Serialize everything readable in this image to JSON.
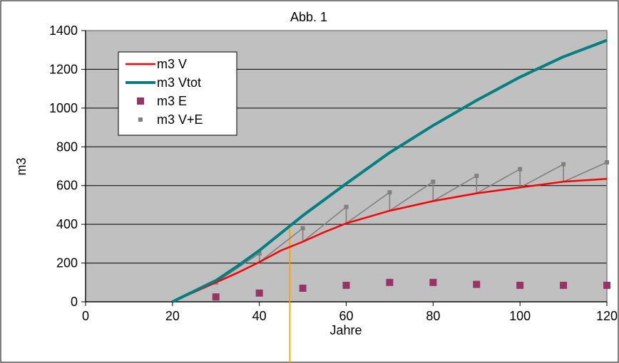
{
  "chart_data": {
    "type": "line",
    "title": "Abb. 1",
    "xlabel": "Jahre",
    "ylabel": "m3",
    "xlim": [
      0,
      120
    ],
    "ylim": [
      0,
      1400
    ],
    "xticks": [
      0,
      20,
      40,
      60,
      80,
      100,
      120
    ],
    "yticks": [
      0,
      200,
      400,
      600,
      800,
      1000,
      1200,
      1400
    ],
    "grid": "horizontal",
    "plot_background": "#c0c0c0",
    "legend_position": "top-left",
    "marker_line_x": 47,
    "series": [
      {
        "name": "m3 V",
        "kind": "line",
        "color": "#ff0000",
        "points": [
          [
            20,
            0
          ],
          [
            25,
            50
          ],
          [
            30,
            100
          ],
          [
            35,
            150
          ],
          [
            40,
            205
          ],
          [
            45,
            265
          ],
          [
            50,
            310
          ],
          [
            55,
            360
          ],
          [
            60,
            405
          ],
          [
            70,
            470
          ],
          [
            80,
            520
          ],
          [
            90,
            560
          ],
          [
            100,
            590
          ],
          [
            110,
            620
          ],
          [
            120,
            635
          ]
        ]
      },
      {
        "name": "m3 Vtot",
        "kind": "line",
        "color": "#008080",
        "points": [
          [
            20,
            0
          ],
          [
            25,
            55
          ],
          [
            30,
            110
          ],
          [
            35,
            185
          ],
          [
            40,
            265
          ],
          [
            45,
            355
          ],
          [
            50,
            445
          ],
          [
            60,
            610
          ],
          [
            70,
            770
          ],
          [
            80,
            910
          ],
          [
            90,
            1040
          ],
          [
            100,
            1160
          ],
          [
            110,
            1265
          ],
          [
            120,
            1350
          ]
        ]
      },
      {
        "name": "m3 E",
        "kind": "markers",
        "color": "#993366",
        "points": [
          [
            30,
            25
          ],
          [
            40,
            45
          ],
          [
            50,
            70
          ],
          [
            60,
            85
          ],
          [
            70,
            100
          ],
          [
            80,
            100
          ],
          [
            90,
            90
          ],
          [
            100,
            85
          ],
          [
            110,
            85
          ],
          [
            120,
            85
          ]
        ]
      },
      {
        "name": "m3 V+E",
        "kind": "sawtooth",
        "color": "#808080",
        "points": [
          [
            20,
            0
          ],
          [
            30,
            100
          ],
          [
            30,
            100
          ],
          [
            40,
            250
          ],
          [
            40,
            205
          ],
          [
            50,
            380
          ],
          [
            50,
            310
          ],
          [
            60,
            490
          ],
          [
            60,
            405
          ],
          [
            70,
            565
          ],
          [
            70,
            470
          ],
          [
            80,
            620
          ],
          [
            80,
            520
          ],
          [
            90,
            650
          ],
          [
            90,
            560
          ],
          [
            100,
            685
          ],
          [
            100,
            590
          ],
          [
            110,
            710
          ],
          [
            110,
            620
          ],
          [
            120,
            720
          ]
        ]
      }
    ]
  }
}
